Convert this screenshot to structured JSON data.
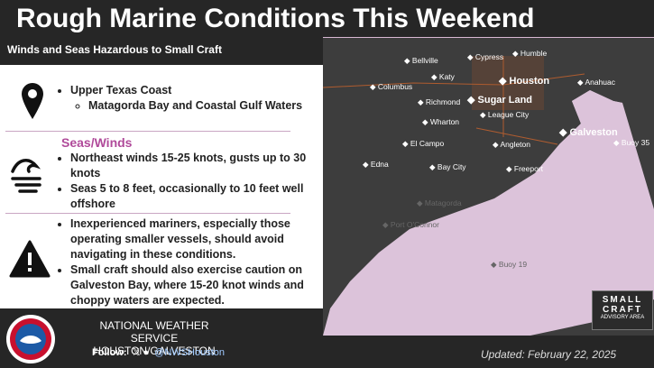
{
  "header": {
    "title": "Rough Marine Conditions This Weekend",
    "subtitle": "Winds and Seas Hazardous to Small Craft"
  },
  "location": {
    "area": "Upper Texas Coast",
    "subarea": "Matagorda Bay and Coastal Gulf Waters"
  },
  "seas_winds": {
    "heading": "Seas/Winds",
    "bullets": [
      "Northeast winds 15-25 knots, gusts up to 30 knots",
      "Seas 5 to 8 feet, occasionally to 10 feet well offshore"
    ]
  },
  "caution": {
    "bullets": [
      "Inexperienced mariners, especially those operating smaller vessels, should avoid navigating in these conditions.",
      "Small craft should also exercise caution on Galveston Bay, where 15-20 knot winds and choppy waters are expected."
    ]
  },
  "map": {
    "places": [
      "Bellville",
      "Cypress",
      "Humble",
      "Columbus",
      "Katy",
      "Houston",
      "Anahuac",
      "Richmond",
      "Sugar Land",
      "League City",
      "Wharton",
      "Galveston",
      "Buoy 35",
      "El Campo",
      "Angleton",
      "Bay City",
      "Freeport",
      "Edna",
      "Matagorda",
      "Port O'Connor",
      "Buoy 19"
    ],
    "legend": {
      "line1": "SMALL",
      "line2": "CRAFT",
      "line3": "ADVISORY AREA"
    }
  },
  "footer": {
    "office": "NATIONAL WEATHER SERVICE",
    "location": "HOUSTON/GALVESTON",
    "follow": "Follow:",
    "handle": "@NWSHouston",
    "updated": "Updated: February 22, 2025"
  }
}
